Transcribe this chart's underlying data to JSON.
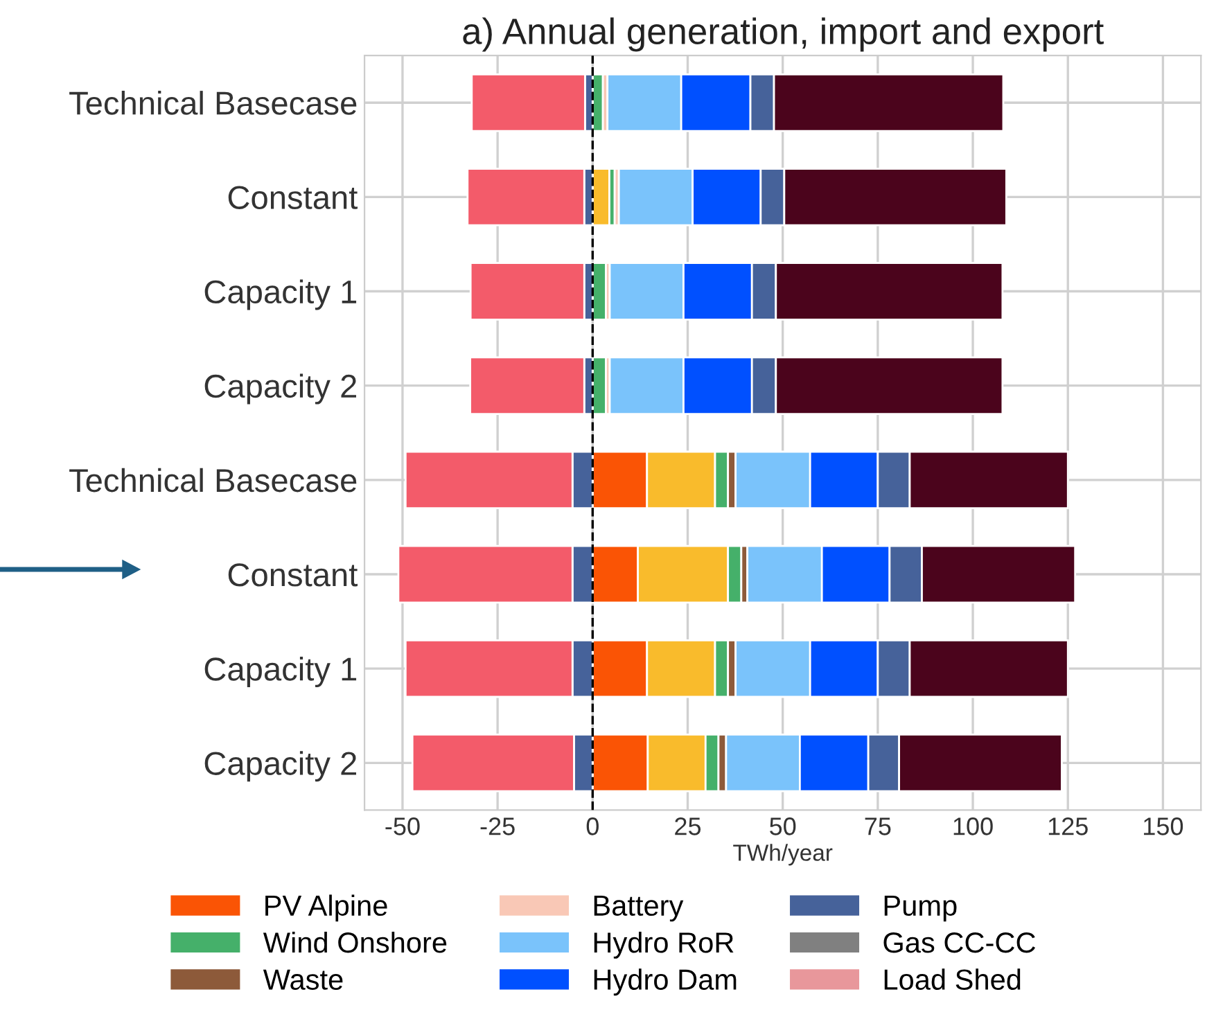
{
  "chart_data": {
    "type": "bar",
    "orientation": "horizontal",
    "stacked": true,
    "title": "a) Annual generation, import and export",
    "xlabel": "TWh/year",
    "categories": [
      "Technical Basecase",
      "Constant",
      "Capacity 1",
      "Capacity 2",
      "Technical Basecase",
      "Constant",
      "Capacity 1",
      "Capacity 2"
    ],
    "series": [
      {
        "name": "PV Alpine",
        "color": "#fa5405",
        "values": [
          0,
          0,
          0,
          0,
          14.3,
          11.9,
          14.3,
          14.5
        ]
      },
      {
        "color": "#f9bb2c",
        "values": [
          0,
          4.4,
          0,
          0,
          17.9,
          23.7,
          17.9,
          15.2
        ]
      },
      {
        "name": "Wind Onshore",
        "color": "#45b06a",
        "values": [
          2.7,
          1.4,
          3.5,
          3.5,
          3.4,
          3.5,
          3.4,
          3.4
        ]
      },
      {
        "name": "Waste",
        "color": "#8d5a3a",
        "values": [
          0,
          0,
          0,
          0,
          2.0,
          1.6,
          2.0,
          2.0
        ]
      },
      {
        "name": "Battery",
        "color": "#f9c8b6",
        "values": [
          1.2,
          1.1,
          1.0,
          1.0,
          0,
          0,
          0,
          0
        ]
      },
      {
        "name": "Hydro RoR",
        "color": "#7ac3fb",
        "values": [
          19.4,
          19.4,
          19.4,
          19.4,
          19.6,
          19.6,
          19.6,
          19.4
        ]
      },
      {
        "name": "Hydro Dam",
        "color": "#0050ff",
        "values": [
          18.2,
          17.9,
          18.0,
          18.0,
          17.8,
          17.8,
          17.8,
          18.0
        ]
      },
      {
        "name": "Pump",
        "color": "#46629a",
        "values": [
          6.2,
          6.2,
          6.3,
          6.3,
          8.4,
          8.5,
          8.4,
          8.1
        ]
      },
      {
        "name": "Gas CC-CC",
        "color": "#808080",
        "values": [
          0,
          0,
          0,
          0,
          0,
          0,
          0,
          0
        ]
      },
      {
        "name": "Load Shed",
        "color": "#e8979b",
        "values": [
          0,
          0,
          0,
          0,
          0,
          0,
          0,
          0
        ]
      },
      {
        "color": "#4b041c",
        "values": [
          60.3,
          58.4,
          59.6,
          59.6,
          41.6,
          40.3,
          41.6,
          42.8
        ]
      },
      {
        "color": "#46629a",
        "values": [
          -2.0,
          -2.2,
          -2.2,
          -2.2,
          -5.3,
          -5.3,
          -5.3,
          -4.9
        ]
      },
      {
        "color": "#f35b6a",
        "values": [
          -29.8,
          -30.7,
          -29.9,
          -30.0,
          -43.9,
          -45.8,
          -43.9,
          -42.5
        ]
      }
    ],
    "xlim": [
      -60,
      160
    ],
    "xticks": [
      -50,
      -25,
      0,
      25,
      50,
      75,
      100,
      125,
      150
    ],
    "ref_lines": [
      {
        "axis": "x",
        "value": 0,
        "color": "#000000",
        "line_style": "dashed"
      }
    ],
    "grid": true,
    "legend": "bottom"
  }
}
